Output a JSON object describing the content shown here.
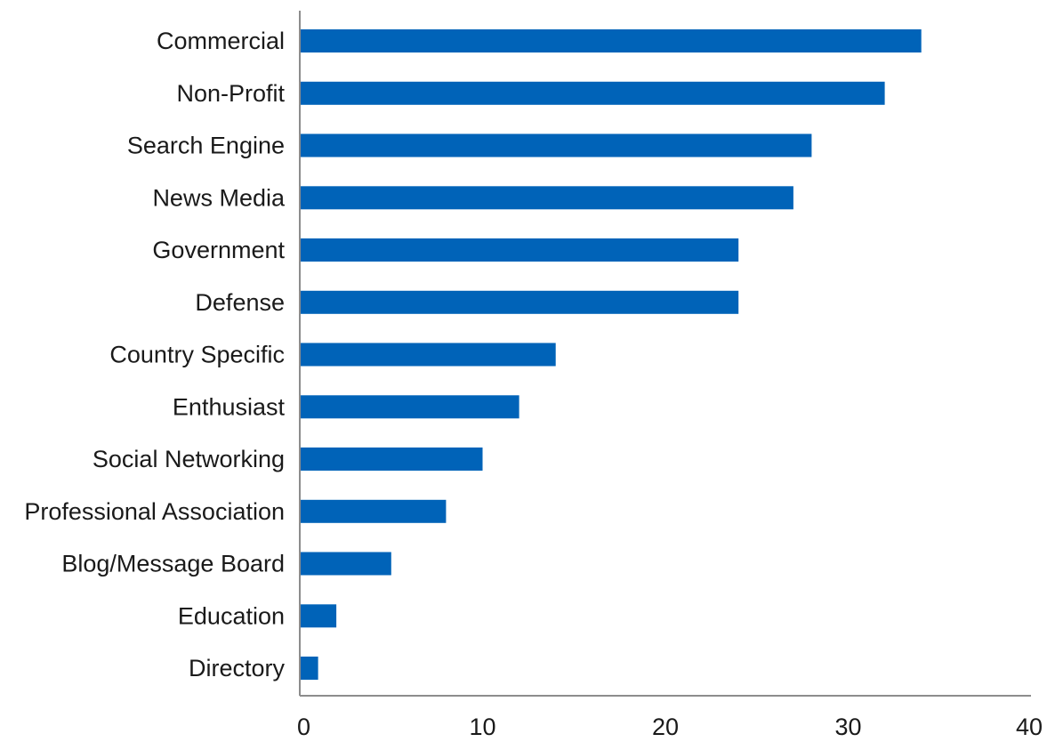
{
  "chart_data": {
    "type": "bar",
    "orientation": "horizontal",
    "categories": [
      "Commercial",
      "Non-Profit",
      "Search Engine",
      "News Media",
      "Government",
      "Defense",
      "Country Specific",
      "Enthusiast",
      "Social Networking",
      "Professional Association",
      "Blog/Message Board",
      "Education",
      "Directory"
    ],
    "values": [
      34,
      32,
      28,
      27,
      24,
      24,
      14,
      12,
      10,
      8,
      5,
      2,
      1
    ],
    "xlim": [
      0,
      40
    ],
    "xticks": [
      0,
      10,
      20,
      30,
      40
    ],
    "title": "",
    "xlabel": "",
    "ylabel": "",
    "grid": false,
    "legend": "none",
    "bar_color": "#0063b8",
    "axis_color": "#8c8c8c"
  }
}
